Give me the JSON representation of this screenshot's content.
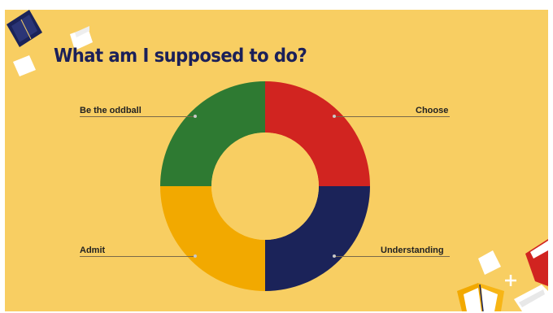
{
  "slide": {
    "title": "What am I supposed to do?"
  },
  "diagram": {
    "segments": [
      {
        "label": "Be the oddball",
        "color": "#2E7A32"
      },
      {
        "label": "Choose",
        "color": "#D12420"
      },
      {
        "label": "Admit",
        "color": "#F2A900"
      },
      {
        "label": "Understanding",
        "color": "#1B2359"
      }
    ],
    "center_color": "#F8CE62"
  },
  "decorations": {
    "top_left_book": "book-icon",
    "bottom_right_books": "book-icon",
    "sparkle": "plus-sparkle-icon"
  }
}
